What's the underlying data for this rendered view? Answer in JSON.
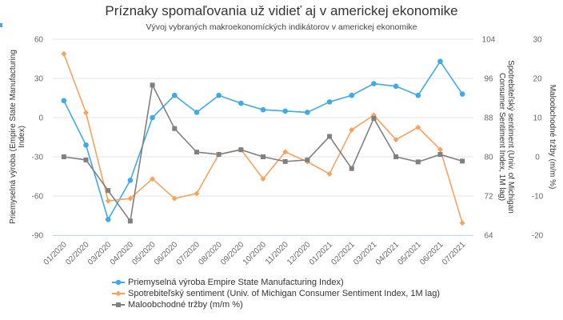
{
  "colors": {
    "accent": "#4fa3d8",
    "series": [
      "#3eaaea",
      "#f7a35c",
      "#808080"
    ],
    "grid": "#e6e6e6",
    "axis_text": "#666666"
  },
  "chart_data": {
    "type": "line",
    "title": "Príznaky spomaľovania už vidieť aj v americkej ekonomike",
    "subtitle": "Vývoj vybraných makroekonomíckých indikátorov v americkej ekonomike",
    "x": [
      "01/2020",
      "02/2020",
      "03/2020",
      "04/2020",
      "05/2020",
      "06/2020",
      "07/2020",
      "08/2020",
      "09/2020",
      "10/2020",
      "11/2020",
      "12/2020",
      "01/2021",
      "02/2021",
      "03/2021",
      "04/2021",
      "05/2021",
      "06/2021",
      "07/2021"
    ],
    "grid": true,
    "legend_position": "bottom-left",
    "axes": [
      {
        "id": "y0",
        "side": "left",
        "label": "Priemyselná výroba (Empire State Manufacturing Index)",
        "ticks": [
          60,
          30,
          0,
          -30,
          -60,
          -90
        ],
        "range": [
          -90,
          60
        ]
      },
      {
        "id": "y1",
        "side": "right",
        "label": "Spotrebiteľský sentiment (Univ. of Michigan Consumer Sentiment Index, 1M lag)",
        "ticks": [
          104,
          96,
          88,
          80,
          72,
          64
        ],
        "range": [
          64,
          104
        ]
      },
      {
        "id": "y2",
        "side": "right",
        "label": "Maloobchodné tržby (m/m %)",
        "ticks": [
          30,
          20,
          10,
          0,
          -10,
          -20
        ],
        "range": [
          -20,
          30
        ]
      }
    ],
    "series": [
      {
        "name": "Priemyselná výroba Empire State Manufacturing Index)",
        "axis": "y0",
        "marker": "circle",
        "values": [
          13,
          -21,
          -78,
          -48,
          0,
          17,
          4,
          17,
          11,
          6,
          5,
          4,
          12,
          17,
          26,
          24,
          17,
          43,
          18
        ]
      },
      {
        "name": "Spotrebiteľský sentiment (Univ. of Michigan Consumer Sentiment Index, 1M lag)",
        "axis": "y1",
        "marker": "diamond",
        "values": [
          101,
          89,
          71,
          71.5,
          75.5,
          71.5,
          72.5,
          80.5,
          81.5,
          75.5,
          81,
          79,
          76.5,
          85.5,
          88.5,
          83.5,
          86,
          81.5,
          66.5
        ]
      },
      {
        "name": "Maloobchodné tržby (m/m %)",
        "axis": "y2",
        "marker": "square",
        "values": [
          0,
          -0.8,
          -8.6,
          -16.4,
          18.3,
          7.2,
          1.2,
          0.6,
          1.8,
          0,
          -1.2,
          -0.8,
          5.2,
          -3.0,
          9.8,
          0,
          -1.3,
          0.6,
          -1.1
        ]
      }
    ]
  }
}
